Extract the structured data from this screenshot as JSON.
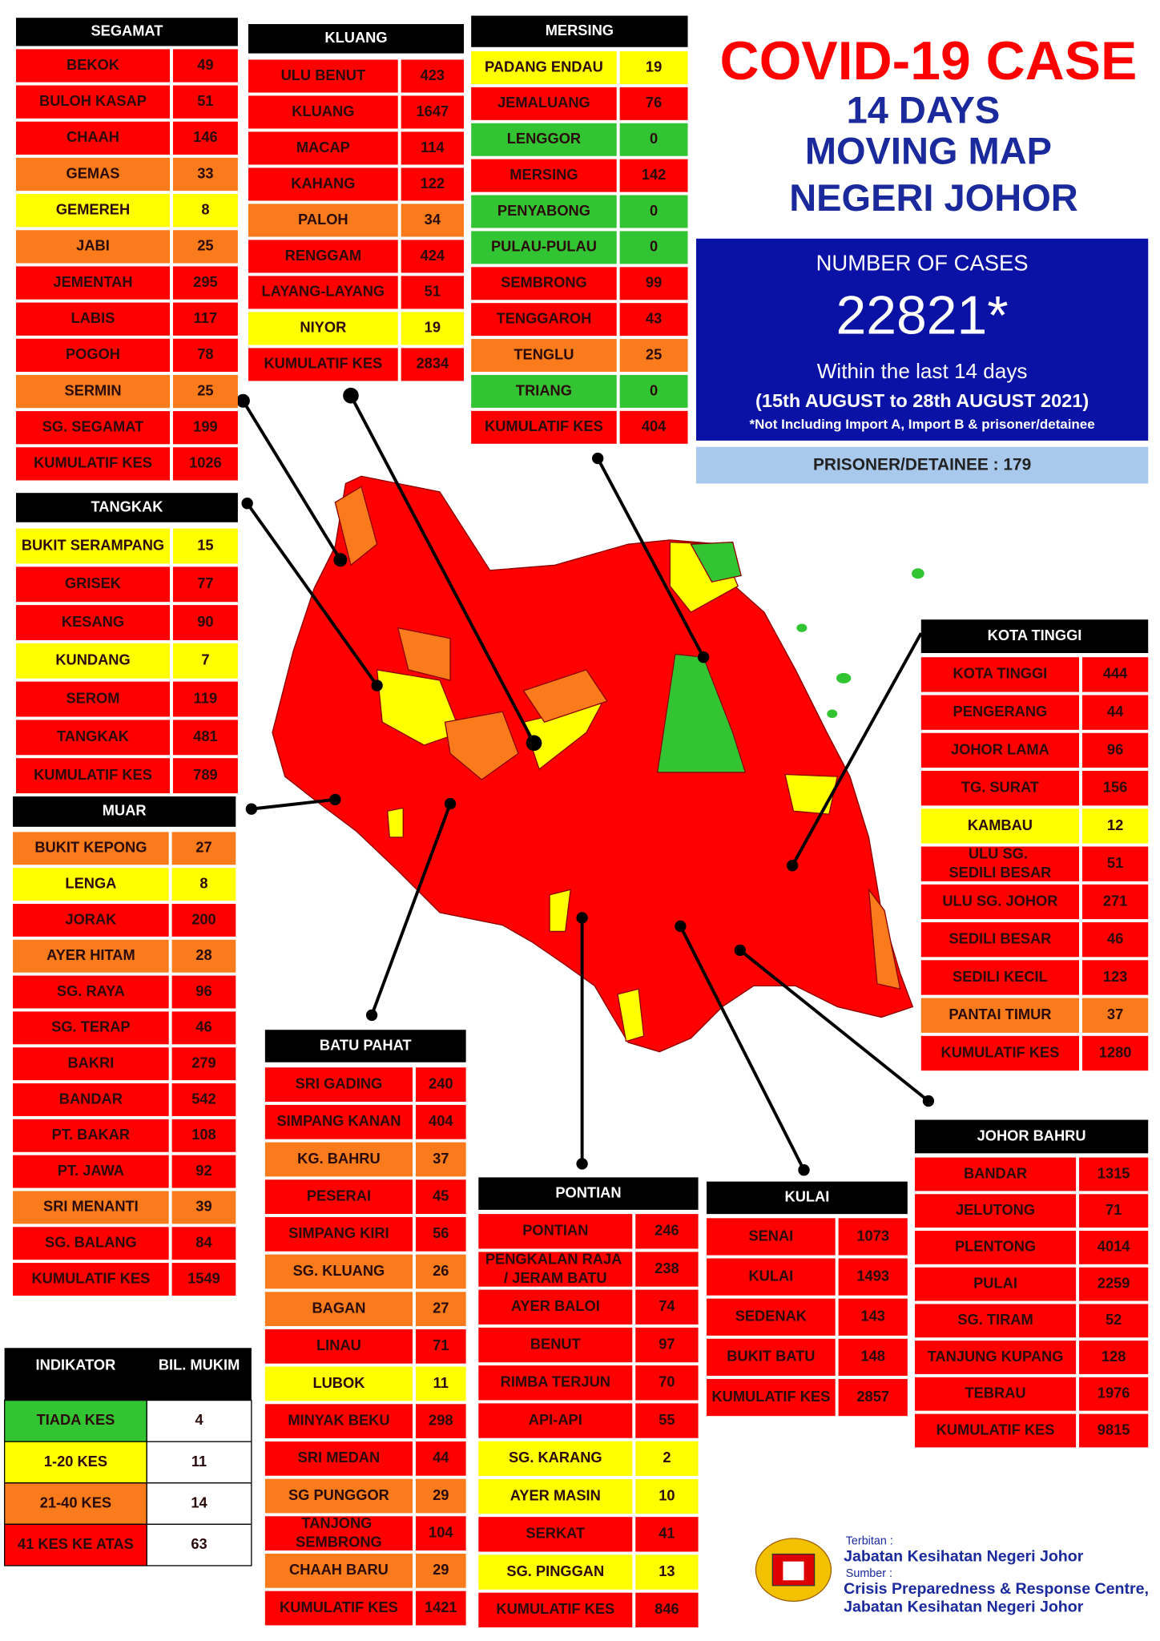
{
  "header": {
    "title": "COVID-19 CASE",
    "subtitle_lines": [
      "14 DAYS",
      "MOVING MAP",
      "NEGERI JOHOR"
    ]
  },
  "summary": {
    "label": "NUMBER OF CASES",
    "value": "22821*",
    "period": "Within the last 14 days",
    "dates": "(15th AUGUST  to 28th AUGUST 2021)",
    "note": "*Not Including Import A, Import B & prisoner/detainee",
    "prisoner": "PRISONER/DETAINEE : 179"
  },
  "districts": [
    {
      "name": "SEGAMAT",
      "total_label": "KUMULATIF KES",
      "total": 1026,
      "rows": [
        {
          "name": "BEKOK",
          "value": 49,
          "color": "#ff0000"
        },
        {
          "name": "BULOH KASAP",
          "value": 51,
          "color": "#ff0000"
        },
        {
          "name": "CHAAH",
          "value": 146,
          "color": "#ff0000"
        },
        {
          "name": "GEMAS",
          "value": 33,
          "color": "#f97b1c"
        },
        {
          "name": "GEMEREH",
          "value": 8,
          "color": "#ffff00"
        },
        {
          "name": "JABI",
          "value": 25,
          "color": "#f97b1c"
        },
        {
          "name": "JEMENTAH",
          "value": 295,
          "color": "#ff0000"
        },
        {
          "name": "LABIS",
          "value": 117,
          "color": "#ff0000"
        },
        {
          "name": "POGOH",
          "value": 78,
          "color": "#ff0000"
        },
        {
          "name": "SERMIN",
          "value": 25,
          "color": "#f97b1c"
        },
        {
          "name": "SG. SEGAMAT",
          "value": 199,
          "color": "#ff0000"
        }
      ]
    },
    {
      "name": "KLUANG",
      "total_label": "KUMULATIF KES",
      "total": 2834,
      "rows": [
        {
          "name": "ULU BENUT",
          "value": 423,
          "color": "#ff0000"
        },
        {
          "name": "KLUANG",
          "value": 1647,
          "color": "#ff0000"
        },
        {
          "name": "MACAP",
          "value": 114,
          "color": "#ff0000"
        },
        {
          "name": "KAHANG",
          "value": 122,
          "color": "#ff0000"
        },
        {
          "name": "PALOH",
          "value": 34,
          "color": "#f97b1c"
        },
        {
          "name": "RENGGAM",
          "value": 424,
          "color": "#ff0000"
        },
        {
          "name": "LAYANG-LAYANG",
          "value": 51,
          "color": "#ff0000"
        },
        {
          "name": "NIYOR",
          "value": 19,
          "color": "#ffff00"
        }
      ]
    },
    {
      "name": "MERSING",
      "total_label": "KUMULATIF KES",
      "total": 404,
      "rows": [
        {
          "name": "PADANG ENDAU",
          "value": 19,
          "color": "#ffff00"
        },
        {
          "name": "JEMALUANG",
          "value": 76,
          "color": "#ff0000"
        },
        {
          "name": "LENGGOR",
          "value": 0,
          "color": "#33c433"
        },
        {
          "name": "MERSING",
          "value": 142,
          "color": "#ff0000"
        },
        {
          "name": "PENYABONG",
          "value": 0,
          "color": "#33c433"
        },
        {
          "name": "PULAU-PULAU",
          "value": 0,
          "color": "#33c433"
        },
        {
          "name": "SEMBRONG",
          "value": 99,
          "color": "#ff0000"
        },
        {
          "name": "TENGGAROH",
          "value": 43,
          "color": "#ff0000"
        },
        {
          "name": "TENGLU",
          "value": 25,
          "color": "#f97b1c"
        },
        {
          "name": "TRIANG",
          "value": 0,
          "color": "#33c433"
        }
      ]
    },
    {
      "name": "TANGKAK",
      "total_label": "KUMULATIF KES",
      "total": 789,
      "rows": [
        {
          "name": "BUKIT SERAMPANG",
          "value": 15,
          "color": "#ffff00"
        },
        {
          "name": "GRISEK",
          "value": 77,
          "color": "#ff0000"
        },
        {
          "name": "KESANG",
          "value": 90,
          "color": "#ff0000"
        },
        {
          "name": "KUNDANG",
          "value": 7,
          "color": "#ffff00"
        },
        {
          "name": "SEROM",
          "value": 119,
          "color": "#ff0000"
        },
        {
          "name": "TANGKAK",
          "value": 481,
          "color": "#ff0000"
        }
      ]
    },
    {
      "name": "MUAR",
      "total_label": "KUMULATIF KES",
      "total": 1549,
      "rows": [
        {
          "name": "BUKIT KEPONG",
          "value": 27,
          "color": "#f97b1c"
        },
        {
          "name": "LENGA",
          "value": 8,
          "color": "#ffff00"
        },
        {
          "name": "JORAK",
          "value": 200,
          "color": "#ff0000"
        },
        {
          "name": "AYER HITAM",
          "value": 28,
          "color": "#f97b1c"
        },
        {
          "name": "SG. RAYA",
          "value": 96,
          "color": "#ff0000"
        },
        {
          "name": "SG. TERAP",
          "value": 46,
          "color": "#ff0000"
        },
        {
          "name": "BAKRI",
          "value": 279,
          "color": "#ff0000"
        },
        {
          "name": "BANDAR",
          "value": 542,
          "color": "#ff0000"
        },
        {
          "name": "PT. BAKAR",
          "value": 108,
          "color": "#ff0000"
        },
        {
          "name": "PT. JAWA",
          "value": 92,
          "color": "#ff0000"
        },
        {
          "name": "SRI MENANTI",
          "value": 39,
          "color": "#f97b1c"
        },
        {
          "name": "SG. BALANG",
          "value": 84,
          "color": "#ff0000"
        }
      ]
    },
    {
      "name": "BATU PAHAT",
      "total_label": "KUMULATIF KES",
      "total": 1421,
      "rows": [
        {
          "name": "SRI GADING",
          "value": 240,
          "color": "#ff0000"
        },
        {
          "name": "SIMPANG KANAN",
          "value": 404,
          "color": "#ff0000"
        },
        {
          "name": "KG. BAHRU",
          "value": 37,
          "color": "#f97b1c"
        },
        {
          "name": "PESERAI",
          "value": 45,
          "color": "#ff0000"
        },
        {
          "name": "SIMPANG KIRI",
          "value": 56,
          "color": "#ff0000"
        },
        {
          "name": "SG. KLUANG",
          "value": 26,
          "color": "#f97b1c"
        },
        {
          "name": "BAGAN",
          "value": 27,
          "color": "#f97b1c"
        },
        {
          "name": "LINAU",
          "value": 71,
          "color": "#ff0000"
        },
        {
          "name": "LUBOK",
          "value": 11,
          "color": "#ffff00"
        },
        {
          "name": "MINYAK BEKU",
          "value": 298,
          "color": "#ff0000"
        },
        {
          "name": "SRI MEDAN",
          "value": 44,
          "color": "#ff0000"
        },
        {
          "name": "SG PUNGGOR",
          "value": 29,
          "color": "#f97b1c"
        },
        {
          "name": "TANJONG SEMBRONG",
          "value": 104,
          "color": "#ff0000"
        },
        {
          "name": "CHAAH BARU",
          "value": 29,
          "color": "#f97b1c"
        }
      ]
    },
    {
      "name": "PONTIAN",
      "total_label": "KUMULATIF KES",
      "total": 846,
      "rows": [
        {
          "name": "PONTIAN",
          "value": 246,
          "color": "#ff0000"
        },
        {
          "name": "PENGKALAN RAJA / JERAM BATU",
          "value": 238,
          "color": "#ff0000"
        },
        {
          "name": "AYER BALOI",
          "value": 74,
          "color": "#ff0000"
        },
        {
          "name": "BENUT",
          "value": 97,
          "color": "#ff0000"
        },
        {
          "name": "RIMBA TERJUN",
          "value": 70,
          "color": "#ff0000"
        },
        {
          "name": "API-API",
          "value": 55,
          "color": "#ff0000"
        },
        {
          "name": "SG. KARANG",
          "value": 2,
          "color": "#ffff00"
        },
        {
          "name": "AYER MASIN",
          "value": 10,
          "color": "#ffff00"
        },
        {
          "name": "SERKAT",
          "value": 41,
          "color": "#ff0000"
        },
        {
          "name": "SG. PINGGAN",
          "value": 13,
          "color": "#ffff00"
        }
      ]
    },
    {
      "name": "KULAI",
      "total_label": "KUMULATIF KES",
      "total": 2857,
      "rows": [
        {
          "name": "SENAI",
          "value": 1073,
          "color": "#ff0000"
        },
        {
          "name": "KULAI",
          "value": 1493,
          "color": "#ff0000"
        },
        {
          "name": "SEDENAK",
          "value": 143,
          "color": "#ff0000"
        },
        {
          "name": "BUKIT BATU",
          "value": 148,
          "color": "#ff0000"
        }
      ]
    },
    {
      "name": "KOTA TINGGI",
      "total_label": "KUMULATIF KES",
      "total": 1280,
      "rows": [
        {
          "name": "KOTA TINGGI",
          "value": 444,
          "color": "#ff0000"
        },
        {
          "name": "PENGERANG",
          "value": 44,
          "color": "#ff0000"
        },
        {
          "name": "JOHOR LAMA",
          "value": 96,
          "color": "#ff0000"
        },
        {
          "name": "TG. SURAT",
          "value": 156,
          "color": "#ff0000"
        },
        {
          "name": "KAMBAU",
          "value": 12,
          "color": "#ffff00"
        },
        {
          "name": "ULU SG. SEDILI BESAR",
          "value": 51,
          "color": "#ff0000"
        },
        {
          "name": "ULU  SG. JOHOR",
          "value": 271,
          "color": "#ff0000"
        },
        {
          "name": "SEDILI BESAR",
          "value": 46,
          "color": "#ff0000"
        },
        {
          "name": "SEDILI KECIL",
          "value": 123,
          "color": "#ff0000"
        },
        {
          "name": "PANTAI TIMUR",
          "value": 37,
          "color": "#f97b1c"
        }
      ]
    },
    {
      "name": "JOHOR BAHRU",
      "total_label": "KUMULATIF KES",
      "total": 9815,
      "rows": [
        {
          "name": "BANDAR",
          "value": 1315,
          "color": "#ff0000"
        },
        {
          "name": "JELUTONG",
          "value": 71,
          "color": "#ff0000"
        },
        {
          "name": "PLENTONG",
          "value": 4014,
          "color": "#ff0000"
        },
        {
          "name": "PULAI",
          "value": 2259,
          "color": "#ff0000"
        },
        {
          "name": "SG. TIRAM",
          "value": 52,
          "color": "#ff0000"
        },
        {
          "name": "TANJUNG KUPANG",
          "value": 128,
          "color": "#ff0000"
        },
        {
          "name": "TEBRAU",
          "value": 1976,
          "color": "#ff0000"
        }
      ]
    }
  ],
  "indicator": {
    "headers": [
      "INDIKATOR",
      "BIL. MUKIM"
    ],
    "rows": [
      {
        "name": "TIADA KES",
        "value": 4,
        "color": "#33c433"
      },
      {
        "name": "1-20 KES",
        "value": 11,
        "color": "#ffff00"
      },
      {
        "name": "21-40 KES",
        "value": 14,
        "color": "#f97b1c"
      },
      {
        "name": "41 KES KE ATAS",
        "value": 63,
        "color": "#ff0000"
      }
    ]
  },
  "footer": {
    "published_label": "Terbitan :",
    "publisher": "Jabatan Kesihatan Negeri Johor",
    "source_label": "Sumber :",
    "source_lines": [
      "Crisis Preparedness & Response Centre,",
      "Jabatan Kesihatan Negeri Johor"
    ]
  }
}
